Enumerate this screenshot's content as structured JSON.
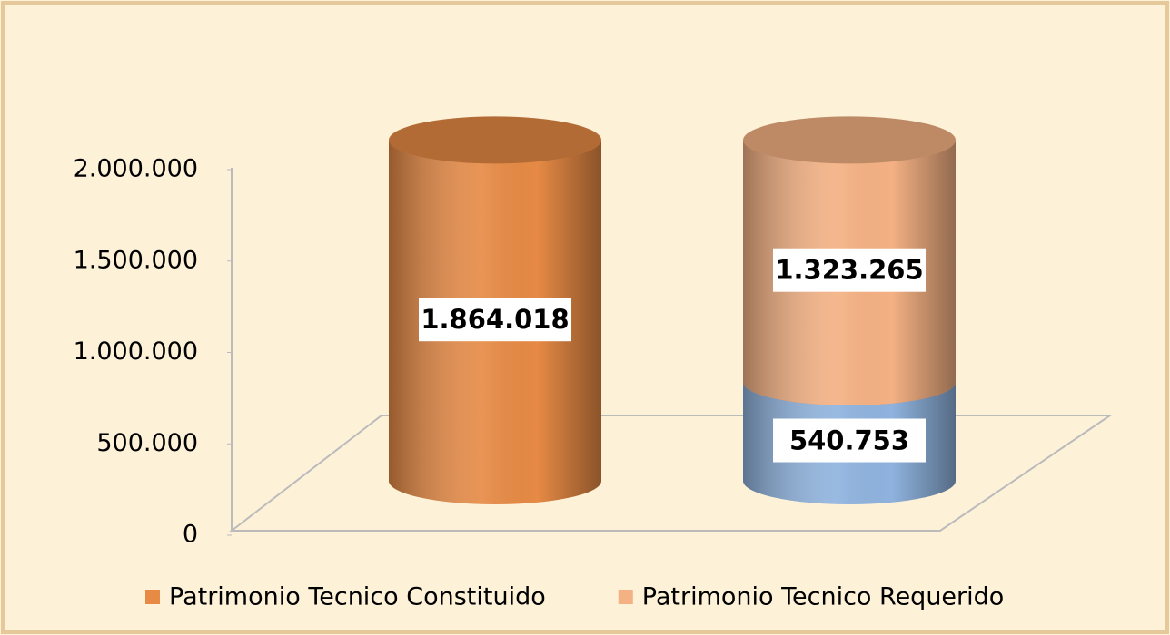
{
  "chart_data": {
    "type": "bar",
    "stacked": true,
    "categories": [
      null,
      null
    ],
    "series": [
      {
        "name": "Patrimonio Tecnico Constituido",
        "color": "#e68a45",
        "values": [
          1864018,
          null
        ],
        "value_labels": [
          "1.864.018",
          null
        ]
      },
      {
        "color": "#8fb3de",
        "values": [
          null,
          540753
        ],
        "value_labels": [
          null,
          "540.753"
        ]
      },
      {
        "name": "Patrimonio Tecnico Requerido",
        "color": "#f4b183",
        "values": [
          null,
          1323265
        ],
        "value_labels": [
          null,
          "1.323.265"
        ]
      }
    ],
    "ylim": [
      0,
      2000000
    ],
    "yticks": [
      0,
      {
        "value": 500000,
        "label": "500.000"
      },
      {
        "value": 1000000,
        "label": "1.000.000"
      },
      {
        "value": 1500000,
        "label": "1.500.000"
      },
      {
        "value": 2000000,
        "label": "2.000.000"
      }
    ],
    "legend": "bottom"
  }
}
